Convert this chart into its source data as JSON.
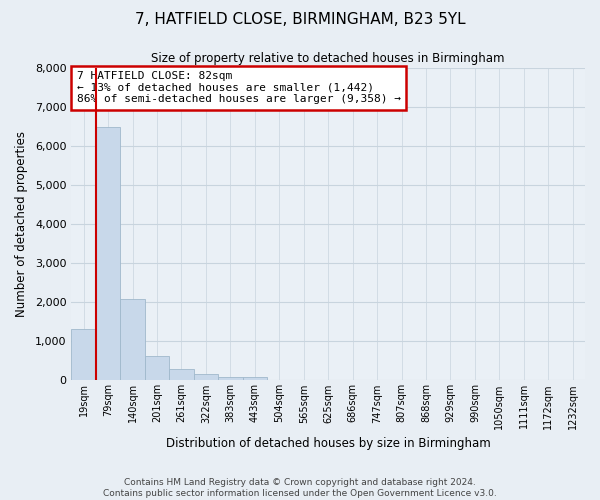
{
  "title": "7, HATFIELD CLOSE, BIRMINGHAM, B23 5YL",
  "subtitle": "Size of property relative to detached houses in Birmingham",
  "xlabel": "Distribution of detached houses by size in Birmingham",
  "ylabel": "Number of detached properties",
  "bar_labels": [
    "19sqm",
    "79sqm",
    "140sqm",
    "201sqm",
    "261sqm",
    "322sqm",
    "383sqm",
    "443sqm",
    "504sqm",
    "565sqm",
    "625sqm",
    "686sqm",
    "747sqm",
    "807sqm",
    "868sqm",
    "929sqm",
    "990sqm",
    "1050sqm",
    "1111sqm",
    "1172sqm",
    "1232sqm"
  ],
  "bar_values": [
    1320,
    6500,
    2080,
    620,
    300,
    155,
    90,
    95,
    0,
    0,
    0,
    0,
    0,
    0,
    0,
    0,
    0,
    0,
    0,
    0,
    0
  ],
  "bar_color": "#c8d8ea",
  "bar_edge_color": "#a0b8cc",
  "annotation_box_text": "7 HATFIELD CLOSE: 82sqm\n← 13% of detached houses are smaller (1,442)\n86% of semi-detached houses are larger (9,358) →",
  "vline_color": "#cc0000",
  "ylim": [
    0,
    8000
  ],
  "yticks": [
    0,
    1000,
    2000,
    3000,
    4000,
    5000,
    6000,
    7000,
    8000
  ],
  "bg_color": "#e8eef4",
  "plot_bg_color": "#eaf0f6",
  "grid_color": "#c8d4de",
  "footnote": "Contains HM Land Registry data © Crown copyright and database right 2024.\nContains public sector information licensed under the Open Government Licence v3.0."
}
